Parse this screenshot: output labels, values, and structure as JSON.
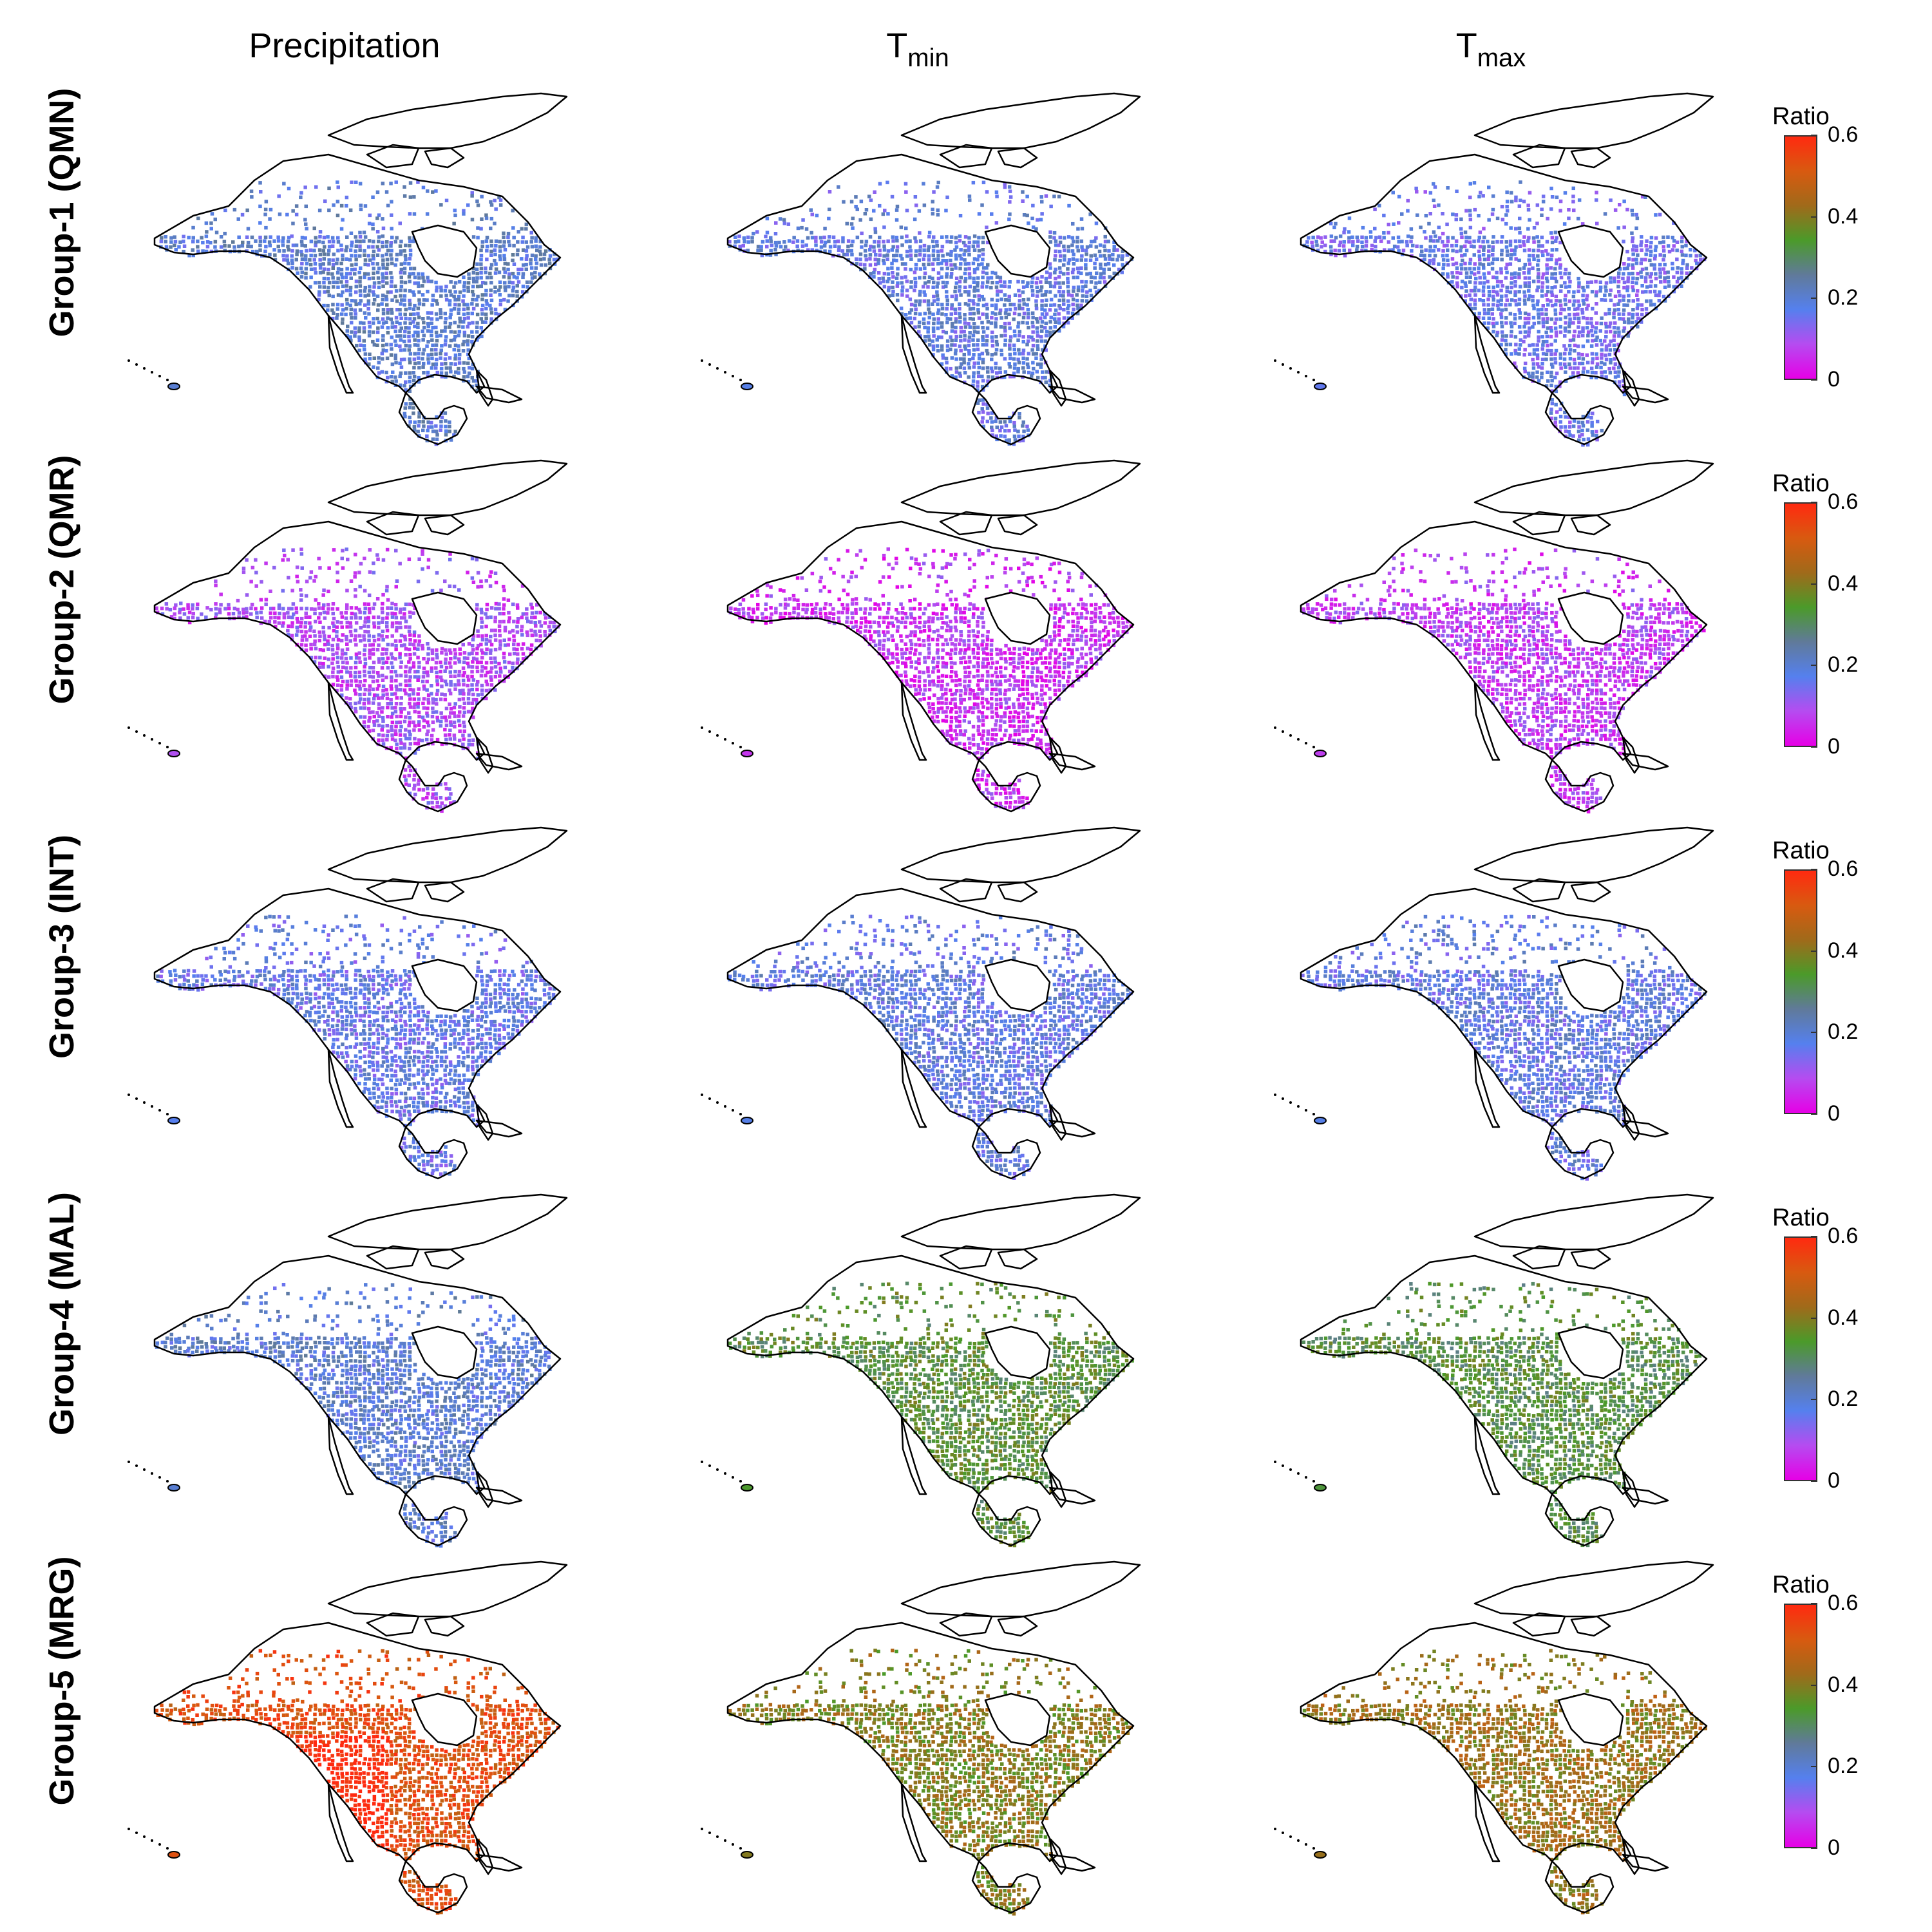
{
  "columns": [
    {
      "id": "precip",
      "title": "Precipitation",
      "sub": ""
    },
    {
      "id": "tmin",
      "title": "T",
      "sub": "min"
    },
    {
      "id": "tmax",
      "title": "T",
      "sub": "max"
    }
  ],
  "rows": [
    {
      "label": "Group-1 (QMN)",
      "levels": [
        0.2,
        0.18,
        0.16
      ]
    },
    {
      "label": "Group-2 (QMR)",
      "levels": [
        0.09,
        0.06,
        0.07
      ]
    },
    {
      "label": "Group-3 (INT)",
      "levels": [
        0.17,
        0.18,
        0.18
      ]
    },
    {
      "label": "Group-4 (MAL)",
      "levels": [
        0.2,
        0.34,
        0.33
      ]
    },
    {
      "label": "Group-5 (MRG)",
      "levels": [
        0.53,
        0.4,
        0.42
      ]
    }
  ],
  "colorbar": {
    "title": "Ratio",
    "ticks": [
      "0",
      "0.2",
      "0.4",
      "0.6"
    ],
    "range": [
      0,
      0.6
    ],
    "stops": [
      "#e600e6",
      "#b54cf0",
      "#5580ee",
      "#607a9a",
      "#4b9a2a",
      "#a06a1a",
      "#d85a10",
      "#ff2a10"
    ]
  },
  "map": {
    "region": "North America",
    "outline_color": "#000000",
    "gap_color": "#ffffff"
  }
}
